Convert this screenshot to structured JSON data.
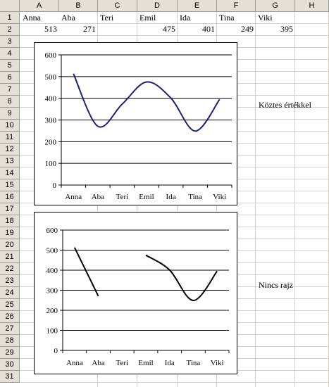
{
  "columns": [
    "A",
    "B",
    "C",
    "D",
    "E",
    "F",
    "G",
    "H"
  ],
  "rows": [
    "1",
    "2",
    "3",
    "4",
    "5",
    "6",
    "7",
    "8",
    "9",
    "10",
    "11",
    "12",
    "13",
    "14",
    "15",
    "16",
    "17",
    "18",
    "19",
    "20",
    "21",
    "22",
    "23",
    "24",
    "25",
    "26",
    "27",
    "28",
    "29",
    "30",
    "31"
  ],
  "row1": [
    "Anna",
    "Aba",
    "Teri",
    "Emil",
    "Ida",
    "Tina",
    "Viki"
  ],
  "row2": [
    "513",
    "271",
    "",
    "475",
    "401",
    "249",
    "395"
  ],
  "label_top": "Köztes értékkel",
  "label_bottom": "Nincs rajz",
  "chart_data": [
    {
      "type": "line",
      "smooth": true,
      "categories": [
        "Anna",
        "Aba",
        "Teri",
        "Emil",
        "Ida",
        "Tina",
        "Viki"
      ],
      "values": [
        513,
        271,
        373,
        475,
        401,
        249,
        395
      ],
      "yticks": [
        "0",
        "100",
        "200",
        "300",
        "400",
        "500",
        "600"
      ],
      "ylim": [
        0,
        600
      ],
      "grid": true,
      "color": "#1f1f7a"
    },
    {
      "type": "line",
      "smooth": true,
      "categories": [
        "Anna",
        "Aba",
        "Teri",
        "Emil",
        "Ida",
        "Tina",
        "Viki"
      ],
      "values": [
        513,
        271,
        null,
        475,
        401,
        249,
        395
      ],
      "yticks": [
        "0",
        "100",
        "200",
        "300",
        "400",
        "500",
        "600"
      ],
      "ylim": [
        0,
        600
      ],
      "grid": true,
      "color": "#000000"
    }
  ]
}
